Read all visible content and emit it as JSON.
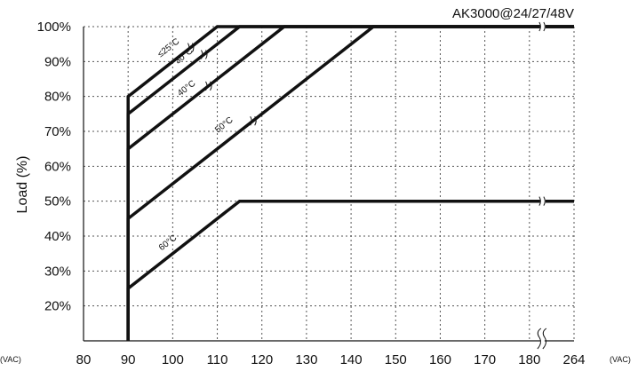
{
  "chart_data": {
    "type": "line",
    "title": "AK3000@24/27/48V",
    "ylabel": "Load (%)",
    "xlabel": "",
    "x_unit_left": "(VAC)",
    "x_unit_right": "(VAC)",
    "x_ticks": [
      "80",
      "90",
      "100",
      "110",
      "120",
      "130",
      "140",
      "150",
      "160",
      "170",
      "180",
      "264"
    ],
    "y_ticks": [
      "20%",
      "30%",
      "40%",
      "50%",
      "60%",
      "70%",
      "80%",
      "90%",
      "100%"
    ],
    "xlim": [
      80,
      190
    ],
    "ylim": [
      10,
      100
    ],
    "x_axis_break": "180–264",
    "grid": true,
    "series": [
      {
        "name": "≤25°C",
        "x": [
          90,
          90,
          110,
          264
        ],
        "y": [
          10,
          80,
          100,
          100
        ]
      },
      {
        "name": "30°C",
        "x": [
          90,
          90,
          115,
          264
        ],
        "y": [
          10,
          75,
          100,
          100
        ]
      },
      {
        "name": "40°C",
        "x": [
          90,
          90,
          125,
          264
        ],
        "y": [
          10,
          65,
          100,
          100
        ]
      },
      {
        "name": "50°C",
        "x": [
          90,
          90,
          145,
          264
        ],
        "y": [
          10,
          45,
          100,
          100
        ]
      },
      {
        "name": "60°C",
        "x": [
          90,
          90,
          115,
          264
        ],
        "y": [
          10,
          25,
          50,
          50
        ]
      }
    ]
  }
}
